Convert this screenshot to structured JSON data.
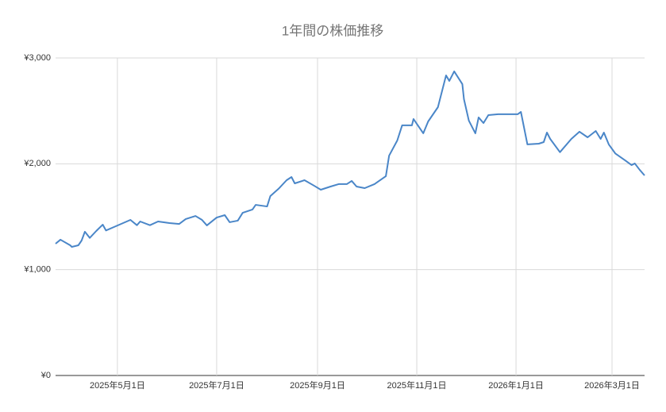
{
  "chart_data": {
    "type": "line",
    "title": "1年間の株価推移",
    "color": "#4a86c8",
    "grid": true,
    "x": [
      "2025-03-24",
      "2025-03-27",
      "2025-04-02",
      "2025-04-03",
      "2025-04-07",
      "2025-04-09",
      "2025-04-11",
      "2025-04-14",
      "2025-04-18",
      "2025-04-22",
      "2025-04-24",
      "2025-04-30",
      "2025-05-09",
      "2025-05-13",
      "2025-05-15",
      "2025-05-21",
      "2025-05-26",
      "2025-06-02",
      "2025-06-08",
      "2025-06-12",
      "2025-06-18",
      "2025-06-22",
      "2025-06-25",
      "2025-07-01",
      "2025-07-06",
      "2025-07-09",
      "2025-07-14",
      "2025-07-17",
      "2025-07-23",
      "2025-07-25",
      "2025-08-01",
      "2025-08-03",
      "2025-08-08",
      "2025-08-13",
      "2025-08-16",
      "2025-08-18",
      "2025-08-24",
      "2025-08-30",
      "2025-09-03",
      "2025-09-09",
      "2025-09-14",
      "2025-09-19",
      "2025-09-22",
      "2025-09-25",
      "2025-09-30",
      "2025-10-06",
      "2025-10-13",
      "2025-10-15",
      "2025-10-20",
      "2025-10-23",
      "2025-10-29",
      "2025-10-30",
      "2025-11-05",
      "2025-11-08",
      "2025-11-14",
      "2025-11-19",
      "2025-11-21",
      "2025-11-24",
      "2025-11-29",
      "2025-11-30",
      "2025-12-03",
      "2025-12-07",
      "2025-12-09",
      "2025-12-12",
      "2025-12-15",
      "2025-12-21",
      "2026-01-02",
      "2026-01-04",
      "2026-01-08",
      "2026-01-15",
      "2026-01-18",
      "2026-01-20",
      "2026-01-22",
      "2026-01-28",
      "2026-02-04",
      "2026-02-09",
      "2026-02-14",
      "2026-02-19",
      "2026-02-22",
      "2026-02-24",
      "2026-02-27",
      "2026-03-03",
      "2026-03-09",
      "2026-03-13",
      "2026-03-15",
      "2026-03-18",
      "2026-03-21"
    ],
    "values": [
      1245,
      1283,
      1230,
      1215,
      1230,
      1275,
      1358,
      1300,
      1365,
      1425,
      1370,
      1410,
      1470,
      1420,
      1455,
      1420,
      1455,
      1440,
      1432,
      1478,
      1507,
      1470,
      1418,
      1492,
      1515,
      1448,
      1463,
      1537,
      1568,
      1612,
      1597,
      1695,
      1763,
      1845,
      1875,
      1815,
      1845,
      1792,
      1755,
      1785,
      1808,
      1808,
      1838,
      1785,
      1770,
      1808,
      1883,
      2077,
      2220,
      2363,
      2363,
      2423,
      2288,
      2400,
      2535,
      2835,
      2783,
      2873,
      2753,
      2610,
      2408,
      2288,
      2438,
      2385,
      2460,
      2468,
      2468,
      2490,
      2183,
      2190,
      2205,
      2295,
      2235,
      2110,
      2235,
      2303,
      2250,
      2310,
      2235,
      2295,
      2183,
      2098,
      2033,
      1988,
      2003,
      1943,
      1890
    ],
    "xlim": [
      "2025-03-24",
      "2026-03-21"
    ],
    "xticks": [
      {
        "value": "2025-05-01",
        "label": "2025年5月1日"
      },
      {
        "value": "2025-07-01",
        "label": "2025年7月1日"
      },
      {
        "value": "2025-09-01",
        "label": "2025年9月1日"
      },
      {
        "value": "2025-11-01",
        "label": "2025年11月1日"
      },
      {
        "value": "2026-01-01",
        "label": "2026年1月1日"
      },
      {
        "value": "2026-03-01",
        "label": "2026年3月1日"
      }
    ],
    "ylim": [
      0,
      3000
    ],
    "yticks": [
      {
        "value": 0,
        "label": "¥0"
      },
      {
        "value": 1000,
        "label": "¥1,000"
      },
      {
        "value": 2000,
        "label": "¥2,000"
      },
      {
        "value": 3000,
        "label": "¥3,000"
      }
    ]
  }
}
